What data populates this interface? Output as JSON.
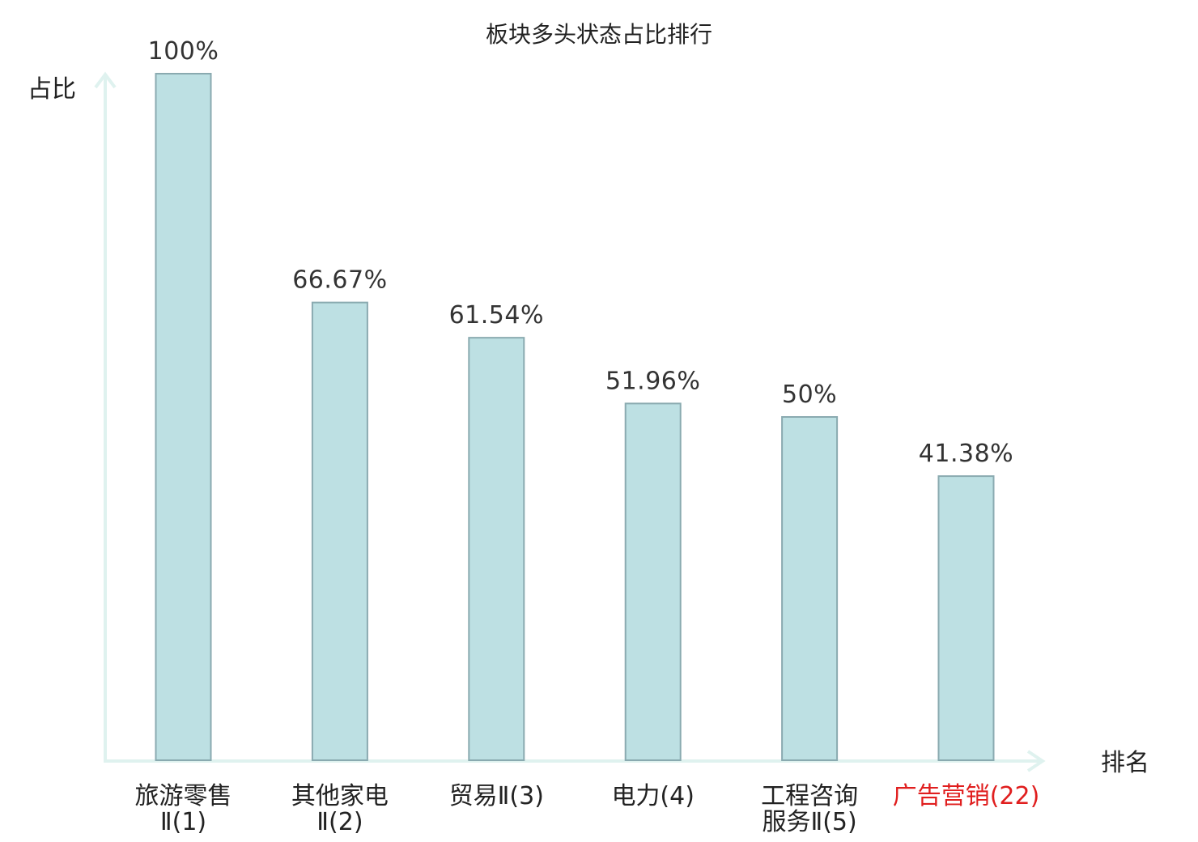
{
  "chart_data": {
    "type": "bar",
    "title": "板块多头状态占比排行",
    "ylabel": "占比",
    "xlabel": "排名",
    "ylim": [
      0,
      100
    ],
    "grid": false,
    "categories": [
      {
        "name_lines": [
          "旅游零售",
          "Ⅱ(1)"
        ],
        "highlight": false
      },
      {
        "name_lines": [
          "其他家电",
          "Ⅱ(2)"
        ],
        "highlight": false
      },
      {
        "name_lines": [
          "贸易Ⅱ(3)"
        ],
        "highlight": false
      },
      {
        "name_lines": [
          "电力(4)"
        ],
        "highlight": false
      },
      {
        "name_lines": [
          "工程咨询",
          "服务Ⅱ(5)"
        ],
        "highlight": false
      },
      {
        "name_lines": [
          "广告营销(22)"
        ],
        "highlight": true
      }
    ],
    "values": [
      100,
      66.67,
      61.54,
      51.96,
      50,
      41.38
    ],
    "value_labels": [
      "100%",
      "66.67%",
      "61.54%",
      "51.96%",
      "50%",
      "41.38%"
    ],
    "colors": {
      "bar_fill": "#bde0e3",
      "bar_stroke": "#8aaab0",
      "axis": "#dff2ef",
      "highlight": "#e01e1e"
    }
  }
}
